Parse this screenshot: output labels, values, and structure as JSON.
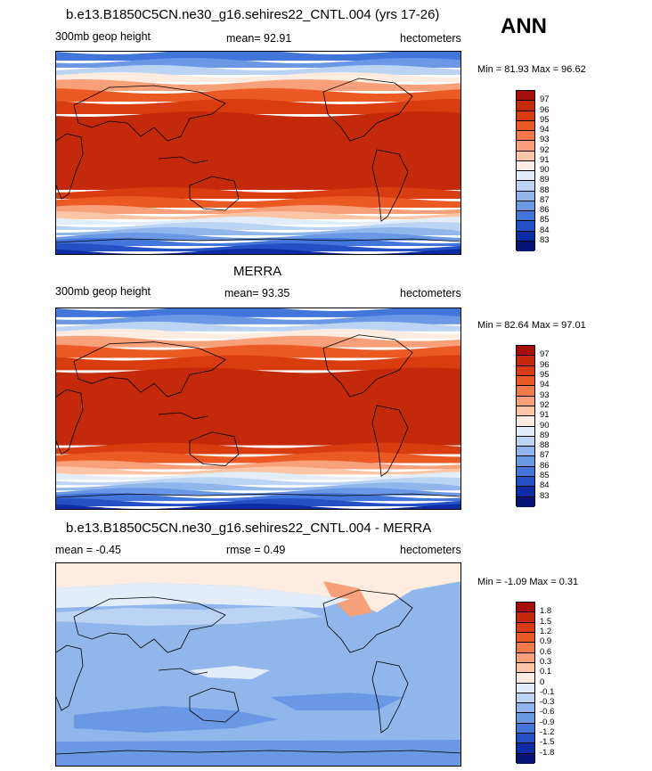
{
  "header": {
    "season": "ANN"
  },
  "panels": [
    {
      "title": "b.e13.B1850C5CN.ne30_g16.sehires22_CNTL.004 (yrs 17-26)",
      "left_label": "300mb geop height",
      "center_label": "mean=  92.91",
      "units": "hectometers",
      "minmax": "Min =  81.93 Max =  96.62",
      "colorbar": {
        "labels": [
          "97",
          "96",
          "95",
          "94",
          "93",
          "92",
          "91",
          "90",
          "89",
          "88",
          "87",
          "86",
          "85",
          "84",
          "83"
        ],
        "colors": [
          "#a50f0c",
          "#c42a0a",
          "#d83c0f",
          "#ec5a24",
          "#f27a48",
          "#f7a07a",
          "#fbc6a6",
          "#fdecdf",
          "#e3edf9",
          "#bcd4f3",
          "#90b6ec",
          "#6a98e4",
          "#4376da",
          "#2350c4",
          "#0c2ca3",
          "#08137a"
        ]
      },
      "map_style": "absolute"
    },
    {
      "title": "MERRA",
      "left_label": "300mb geop height",
      "center_label": "mean=  93.35",
      "units": "hectometers",
      "minmax": "Min =  82.64 Max =  97.01",
      "colorbar": {
        "labels": [
          "97",
          "96",
          "95",
          "94",
          "93",
          "92",
          "91",
          "90",
          "89",
          "88",
          "87",
          "86",
          "85",
          "84",
          "83"
        ],
        "colors": [
          "#a50f0c",
          "#c42a0a",
          "#d83c0f",
          "#ec5a24",
          "#f27a48",
          "#f7a07a",
          "#fbc6a6",
          "#fdecdf",
          "#e3edf9",
          "#bcd4f3",
          "#90b6ec",
          "#6a98e4",
          "#4376da",
          "#2350c4",
          "#0c2ca3",
          "#08137a"
        ]
      },
      "map_style": "absolute"
    },
    {
      "title": "b.e13.B1850C5CN.ne30_g16.sehires22_CNTL.004 - MERRA",
      "left_label": "mean =  -0.45",
      "center_label": "rmse =   0.49",
      "units": "hectometers",
      "minmax": "Min =  -1.09 Max =   0.31",
      "colorbar": {
        "labels": [
          "1.8",
          "1.5",
          "1.2",
          "0.9",
          "0.6",
          "0.3",
          "0.1",
          "0",
          "-0.1",
          "-0.3",
          "-0.6",
          "-0.9",
          "-1.2",
          "-1.5",
          "-1.8"
        ],
        "colors": [
          "#a50f0c",
          "#c42a0a",
          "#d83c0f",
          "#ec5a24",
          "#f27a48",
          "#f7a07a",
          "#fbc6a6",
          "#fdecdf",
          "#e3edf9",
          "#bcd4f3",
          "#90b6ec",
          "#6a98e4",
          "#4376da",
          "#2350c4",
          "#0c2ca3",
          "#08137a"
        ]
      },
      "map_style": "difference"
    }
  ]
}
